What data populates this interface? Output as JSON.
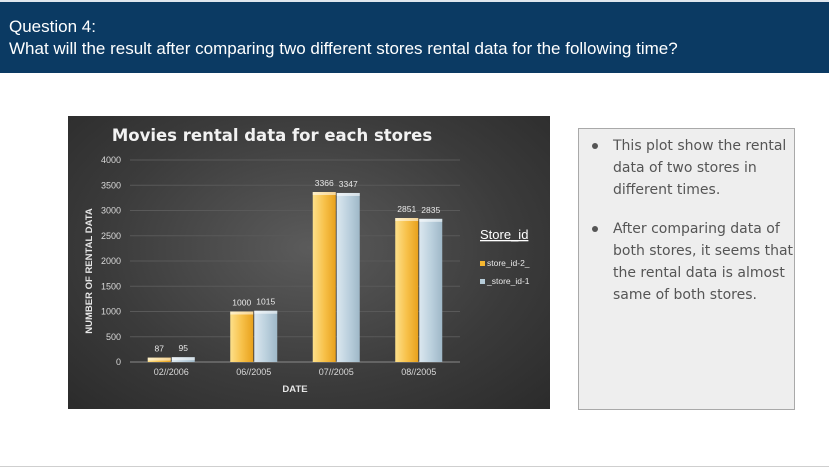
{
  "question": {
    "number": "Question 4:",
    "text": "What will the result after comparing two different stores rental data for the following time?"
  },
  "notes": [
    "This plot show  the rental data of two stores in different times.",
    "After comparing data of both stores, it seems that  the rental data is almost same of both stores."
  ],
  "chart_data": {
    "type": "bar",
    "title": "Movies rental data for each stores",
    "xlabel": "DATE",
    "ylabel": "NUMBER OF RENTAL DATA",
    "ylim": [
      0,
      4000
    ],
    "yticks": [
      "0",
      "500",
      "1000",
      "1500",
      "2000",
      "2500",
      "3000",
      "3500",
      "4000"
    ],
    "categories": [
      "02//2006",
      "06//2005",
      "07//2005",
      "08//2005"
    ],
    "legend_title": "Store_id",
    "legend_position": "right",
    "series": [
      {
        "name": "store_id-2_",
        "values": [
          87,
          1000,
          3366,
          2851
        ],
        "labels": [
          "87",
          "1000",
          "3366",
          "2851"
        ],
        "color": "#f5b731"
      },
      {
        "name": "_store_id-1",
        "values": [
          95,
          1015,
          3347,
          2835
        ],
        "labels": [
          "95",
          "1015",
          "3347",
          "2835"
        ],
        "color": "#b6ccd9"
      }
    ]
  }
}
